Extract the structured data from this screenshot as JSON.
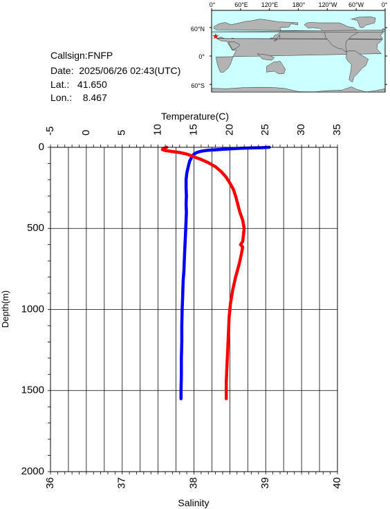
{
  "station": {
    "callsign_line": "Callsign:FNFP",
    "date_line": "Date:  2025/06/26 02:43(UTC)",
    "lat_line": "Lat.:   41.650",
    "lon_line": "Lon.:    8.467"
  },
  "inset_map": {
    "top_ticks": [
      "0°",
      "60°E",
      "120°E",
      "180°",
      "120°W",
      "60°W",
      "0°"
    ],
    "lat_ticks": [
      "60°N",
      "0°",
      "60°S"
    ],
    "ocean_color": "#ccffff",
    "land_color": "#b3b3b3",
    "marker_color": "#ff0000",
    "marker_lat": 41.65,
    "marker_lon": 8.467
  },
  "chart_data": {
    "type": "line",
    "top_axis": {
      "label": "Temperature(C)",
      "range": [
        -5,
        35
      ],
      "ticks": [
        "-5",
        "0",
        "5",
        "10",
        "15",
        "20",
        "25",
        "30",
        "35"
      ]
    },
    "bottom_axis": {
      "label": "Salinity",
      "range": [
        36,
        40
      ],
      "ticks": [
        "36",
        "37",
        "38",
        "39",
        "40"
      ]
    },
    "y_axis": {
      "label": "Depth(m)",
      "range": [
        0,
        2000
      ],
      "inverted": true,
      "ticks": [
        "0",
        "500",
        "1000",
        "1500",
        "2000"
      ]
    },
    "grid": true,
    "series": [
      {
        "variable": "temperature",
        "axis": "top",
        "color": "#0000ff",
        "points": [
          [
            25.5,
            0
          ],
          [
            24.5,
            2
          ],
          [
            23.0,
            4
          ],
          [
            21.5,
            6
          ],
          [
            20.0,
            10
          ],
          [
            18.5,
            14
          ],
          [
            17.0,
            18
          ],
          [
            16.0,
            24
          ],
          [
            15.4,
            32
          ],
          [
            15.0,
            42
          ],
          [
            14.7,
            60
          ],
          [
            14.4,
            85
          ],
          [
            14.2,
            120
          ],
          [
            14.0,
            160
          ],
          [
            13.9,
            200
          ],
          [
            13.9,
            250
          ],
          [
            13.95,
            300
          ],
          [
            13.9,
            350
          ],
          [
            13.95,
            400
          ],
          [
            13.9,
            450
          ],
          [
            13.85,
            500
          ],
          [
            13.8,
            550
          ],
          [
            13.75,
            600
          ],
          [
            13.7,
            650
          ],
          [
            13.65,
            700
          ],
          [
            13.6,
            760
          ],
          [
            13.5,
            820
          ],
          [
            13.45,
            880
          ],
          [
            13.4,
            950
          ],
          [
            13.35,
            1000
          ],
          [
            13.3,
            1100
          ],
          [
            13.3,
            1200
          ],
          [
            13.25,
            1300
          ],
          [
            13.25,
            1400
          ],
          [
            13.2,
            1500
          ],
          [
            13.2,
            1550
          ]
        ]
      },
      {
        "variable": "salinity",
        "axis": "bottom",
        "color": "#ff0000",
        "points": [
          [
            37.62,
            0
          ],
          [
            37.57,
            8
          ],
          [
            37.56,
            14
          ],
          [
            37.6,
            20
          ],
          [
            37.7,
            26
          ],
          [
            37.8,
            32
          ],
          [
            37.9,
            42
          ],
          [
            38.0,
            58
          ],
          [
            38.1,
            75
          ],
          [
            38.2,
            95
          ],
          [
            38.3,
            120
          ],
          [
            38.38,
            150
          ],
          [
            38.45,
            185
          ],
          [
            38.5,
            220
          ],
          [
            38.55,
            260
          ],
          [
            38.58,
            300
          ],
          [
            38.61,
            350
          ],
          [
            38.64,
            400
          ],
          [
            38.68,
            450
          ],
          [
            38.7,
            500
          ],
          [
            38.69,
            540
          ],
          [
            38.68,
            580
          ],
          [
            38.65,
            600
          ],
          [
            38.68,
            615
          ],
          [
            38.66,
            660
          ],
          [
            38.63,
            720
          ],
          [
            38.58,
            800
          ],
          [
            38.54,
            880
          ],
          [
            38.51,
            960
          ],
          [
            38.49,
            1050
          ],
          [
            38.48,
            1150
          ],
          [
            38.47,
            1250
          ],
          [
            38.46,
            1350
          ],
          [
            38.45,
            1450
          ],
          [
            38.45,
            1550
          ]
        ]
      }
    ]
  }
}
